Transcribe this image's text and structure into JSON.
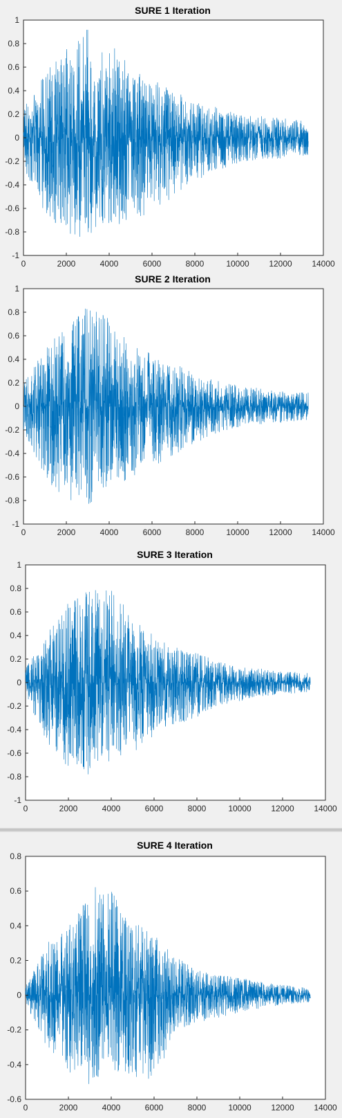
{
  "chart_data": [
    {
      "type": "line",
      "title": "SURE 1 Iteration",
      "xlabel": "",
      "ylabel": "",
      "xlim": [
        0,
        14000
      ],
      "ylim": [
        -1,
        1
      ],
      "xticks": [
        0,
        2000,
        4000,
        6000,
        8000,
        10000,
        12000,
        14000
      ],
      "yticks": [
        -1,
        -0.8,
        -0.6,
        -0.4,
        -0.2,
        0,
        0.2,
        0.4,
        0.6,
        0.8,
        1
      ],
      "grid": false,
      "color": "#0072bd",
      "n_samples": 13300,
      "envelope": {
        "x": [
          0,
          1000,
          2000,
          3000,
          4000,
          5000,
          6000,
          7000,
          8000,
          9000,
          10000,
          11000,
          12000,
          13300
        ],
        "upper": [
          0.25,
          0.55,
          0.75,
          0.93,
          0.82,
          0.6,
          0.5,
          0.42,
          0.3,
          0.26,
          0.2,
          0.19,
          0.17,
          0.15
        ],
        "lower": [
          -0.25,
          -0.65,
          -0.82,
          -0.88,
          -0.75,
          -0.72,
          -0.66,
          -0.5,
          -0.38,
          -0.28,
          -0.22,
          -0.18,
          -0.18,
          -0.15
        ]
      }
    },
    {
      "type": "line",
      "title": "SURE 2 Iteration",
      "xlabel": "",
      "ylabel": "",
      "xlim": [
        0,
        14000
      ],
      "ylim": [
        -1,
        1
      ],
      "xticks": [
        0,
        2000,
        4000,
        6000,
        8000,
        10000,
        12000,
        14000
      ],
      "yticks": [
        -1,
        -0.8,
        -0.6,
        -0.4,
        -0.2,
        0,
        0.2,
        0.4,
        0.6,
        0.8,
        1
      ],
      "grid": false,
      "color": "#0072bd",
      "n_samples": 13300,
      "envelope": {
        "x": [
          0,
          1000,
          2000,
          3000,
          4000,
          5000,
          6000,
          7000,
          8000,
          9000,
          10000,
          11000,
          12000,
          13300
        ],
        "upper": [
          0.2,
          0.5,
          0.7,
          0.86,
          0.75,
          0.55,
          0.45,
          0.38,
          0.27,
          0.22,
          0.18,
          0.16,
          0.14,
          0.12
        ],
        "lower": [
          -0.22,
          -0.62,
          -0.8,
          -0.85,
          -0.7,
          -0.62,
          -0.52,
          -0.42,
          -0.32,
          -0.24,
          -0.18,
          -0.16,
          -0.14,
          -0.12
        ]
      }
    },
    {
      "type": "line",
      "title": "SURE 3 Iteration",
      "xlabel": "",
      "ylabel": "",
      "xlim": [
        0,
        14000
      ],
      "ylim": [
        -1,
        1
      ],
      "xticks": [
        0,
        2000,
        4000,
        6000,
        8000,
        10000,
        12000,
        14000
      ],
      "yticks": [
        -1,
        -0.8,
        -0.6,
        -0.4,
        -0.2,
        0,
        0.2,
        0.4,
        0.6,
        0.8,
        1
      ],
      "grid": false,
      "color": "#0072bd",
      "n_samples": 13300,
      "envelope": {
        "x": [
          0,
          1000,
          2000,
          3000,
          4000,
          5000,
          6000,
          7000,
          8000,
          9000,
          10000,
          11000,
          12000,
          13300
        ],
        "upper": [
          0.12,
          0.42,
          0.68,
          0.8,
          0.82,
          0.55,
          0.4,
          0.3,
          0.25,
          0.18,
          0.14,
          0.12,
          0.1,
          0.08
        ],
        "lower": [
          -0.12,
          -0.5,
          -0.75,
          -0.85,
          -0.65,
          -0.6,
          -0.45,
          -0.36,
          -0.3,
          -0.2,
          -0.16,
          -0.12,
          -0.1,
          -0.08
        ]
      }
    },
    {
      "type": "line",
      "title": "SURE 4 Iteration",
      "xlabel": "",
      "ylabel": "",
      "xlim": [
        0,
        14000
      ],
      "ylim": [
        -0.6,
        0.8
      ],
      "xticks": [
        0,
        2000,
        4000,
        6000,
        8000,
        10000,
        12000,
        14000
      ],
      "yticks": [
        -0.6,
        -0.4,
        -0.2,
        0,
        0.2,
        0.4,
        0.6,
        0.8
      ],
      "grid": false,
      "color": "#0072bd",
      "n_samples": 13300,
      "envelope": {
        "x": [
          0,
          1000,
          2000,
          3000,
          4000,
          5000,
          6000,
          7000,
          8000,
          9000,
          10000,
          11000,
          12000,
          13300
        ],
        "upper": [
          0.05,
          0.3,
          0.4,
          0.63,
          0.6,
          0.45,
          0.36,
          0.22,
          0.15,
          0.12,
          0.1,
          0.08,
          0.06,
          0.04
        ],
        "lower": [
          -0.05,
          -0.3,
          -0.45,
          -0.53,
          -0.45,
          -0.47,
          -0.5,
          -0.22,
          -0.16,
          -0.13,
          -0.1,
          -0.08,
          -0.06,
          -0.04
        ]
      }
    }
  ]
}
